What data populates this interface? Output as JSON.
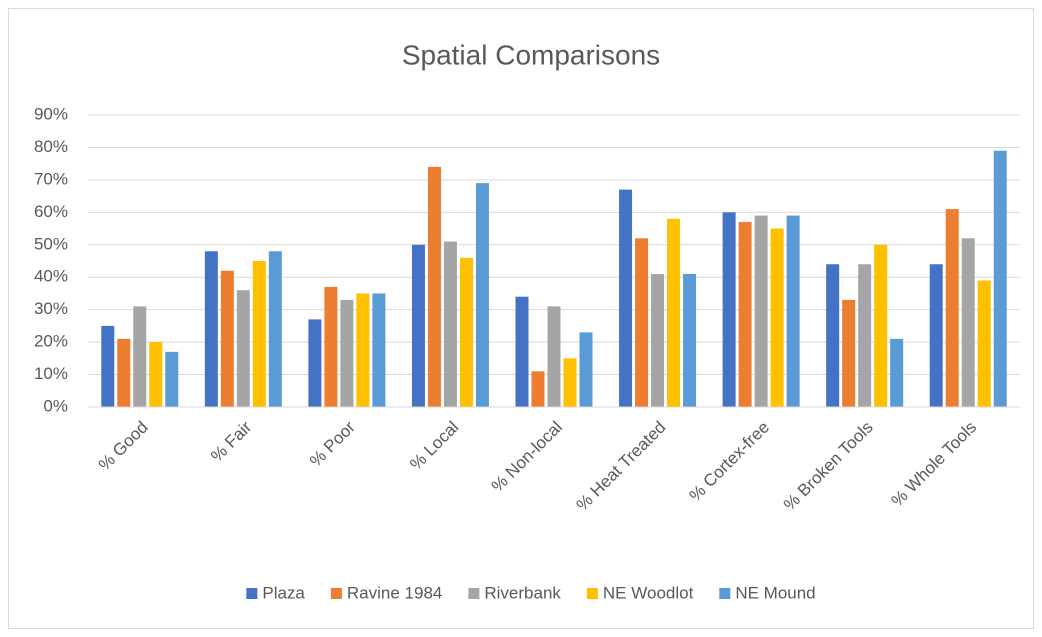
{
  "chart_data": {
    "type": "bar",
    "title": "Spatial Comparisons",
    "categories": [
      "% Good",
      "% Fair",
      "% Poor",
      "% Local",
      "% Non-local",
      "% Heat Treated",
      "% Cortex-free",
      "% Broken Tools",
      "% Whole Tools"
    ],
    "series": [
      {
        "name": "Plaza",
        "color": "#4472c4",
        "values": [
          25,
          48,
          27,
          50,
          34,
          67,
          60,
          44,
          44
        ]
      },
      {
        "name": "Ravine 1984",
        "color": "#ed7d31",
        "values": [
          21,
          42,
          37,
          74,
          11,
          52,
          57,
          33,
          61
        ]
      },
      {
        "name": "Riverbank",
        "color": "#a5a5a5",
        "values": [
          31,
          36,
          33,
          51,
          31,
          41,
          59,
          44,
          52
        ]
      },
      {
        "name": "NE Woodlot",
        "color": "#ffc000",
        "values": [
          20,
          45,
          35,
          46,
          15,
          58,
          55,
          50,
          39
        ]
      },
      {
        "name": "NE Mound",
        "color": "#5b9bd5",
        "values": [
          17,
          48,
          35,
          69,
          23,
          41,
          59,
          21,
          79
        ]
      }
    ],
    "ylim": [
      0,
      90
    ],
    "yticks": [
      {
        "value": 0,
        "label": "0%"
      },
      {
        "value": 10,
        "label": "10%"
      },
      {
        "value": 20,
        "label": "20%"
      },
      {
        "value": 30,
        "label": "30%"
      },
      {
        "value": 40,
        "label": "40%"
      },
      {
        "value": 50,
        "label": "50%"
      },
      {
        "value": 60,
        "label": "60%"
      },
      {
        "value": 70,
        "label": "70%"
      },
      {
        "value": 80,
        "label": "80%"
      },
      {
        "value": 90,
        "label": "90%"
      }
    ],
    "grid": true,
    "legend": "bottom"
  }
}
